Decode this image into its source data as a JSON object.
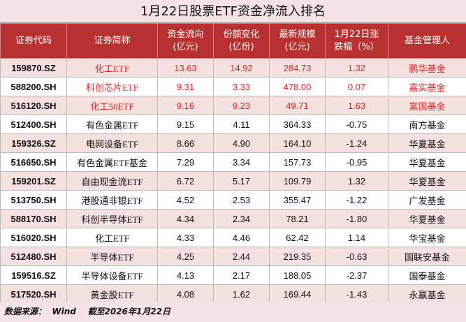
{
  "header": {
    "title": "1月22日股票ETF资金净流入排名"
  },
  "table": {
    "columns": [
      "证券代码",
      "证券简称",
      "资金流向\n(亿元)",
      "份额变化\n(亿份)",
      "最新规模\n(亿元)",
      "1月22日涨\n跌幅（%）",
      "基金管理人"
    ],
    "rows": [
      [
        "159870.SZ",
        "化工ETF",
        "13.63",
        "14.92",
        "284.73",
        "1.32",
        "鹏华基金"
      ],
      [
        "588200.SH",
        "科创芯片ETF",
        "9.31",
        "3.33",
        "478.00",
        "0.07",
        "嘉实基金"
      ],
      [
        "516120.SH",
        "化工50ETF",
        "9.16",
        "9.23",
        "49.71",
        "1.63",
        "富国基金"
      ],
      [
        "512400.SH",
        "有色金属ETF",
        "9.15",
        "4.11",
        "364.33",
        "-0.75",
        "南方基金"
      ],
      [
        "159326.SZ",
        "电网设备ETF",
        "8.66",
        "4.90",
        "164.10",
        "-1.24",
        "华夏基金"
      ],
      [
        "516650.SH",
        "有色金属ETF基金",
        "7.29",
        "3.34",
        "157.73",
        "-0.95",
        "华夏基金"
      ],
      [
        "159201.SZ",
        "自由现金流ETF",
        "6.72",
        "5.17",
        "109.79",
        "1.32",
        "华夏基金"
      ],
      [
        "513750.SH",
        "港股通非银ETF",
        "4.52",
        "2.53",
        "355.47",
        "-1.22",
        "广发基金"
      ],
      [
        "588170.SH",
        "科创半导体ETF",
        "4.34",
        "2.34",
        "78.21",
        "-1.80",
        "华夏基金"
      ],
      [
        "516020.SH",
        "化工ETF",
        "4.33",
        "4.46",
        "62.42",
        "1.14",
        "华宝基金"
      ],
      [
        "512480.SH",
        "半导体ETF",
        "4.25",
        "2.44",
        "219.35",
        "-0.63",
        "国联安基金"
      ],
      [
        "159516.SZ",
        "半导体设备ETF",
        "4.13",
        "2.17",
        "188.05",
        "-2.37",
        "国泰基金"
      ],
      [
        "517520.SH",
        "黄金股ETF",
        "4.08",
        "1.62",
        "169.44",
        "-1.43",
        "永赢基金"
      ]
    ]
  },
  "footer": {
    "source": "数据来源：  Wind    截至2026年1月22日"
  }
}
